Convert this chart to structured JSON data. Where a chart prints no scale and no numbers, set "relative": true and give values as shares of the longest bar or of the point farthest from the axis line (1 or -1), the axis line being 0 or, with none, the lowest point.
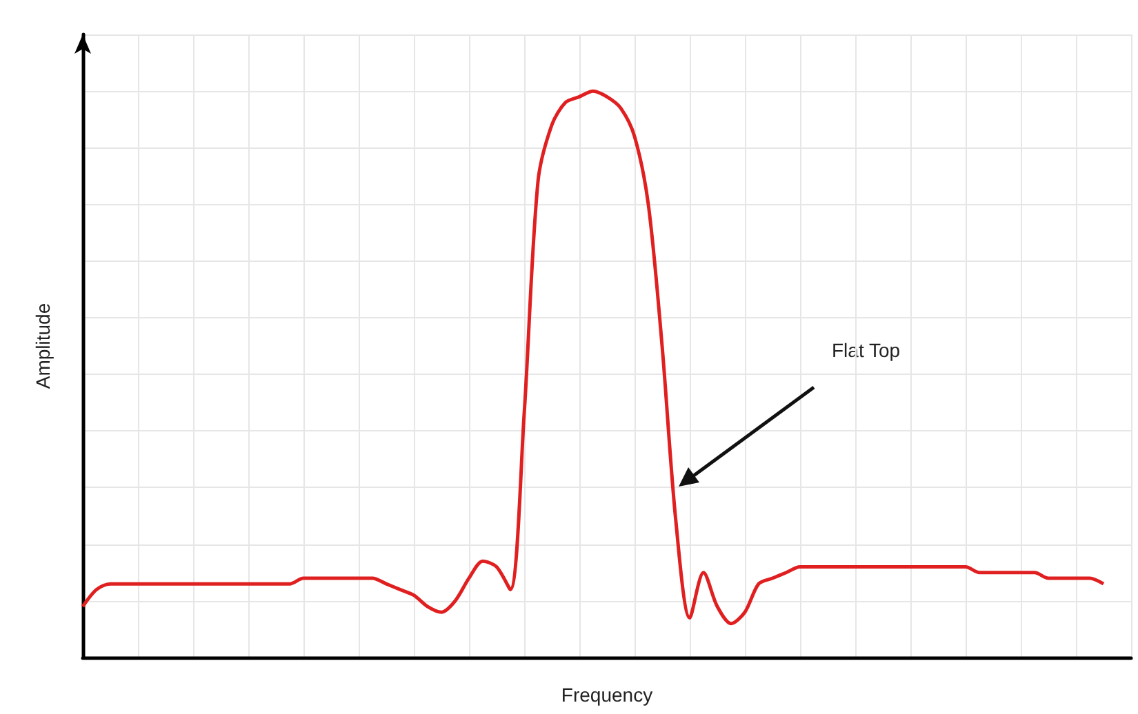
{
  "chart_data": {
    "type": "line",
    "relative": true,
    "xlabel": "Frequency",
    "ylabel": "Amplitude",
    "grid": true,
    "annotations": [
      "Flat Top"
    ],
    "categories": [
      null,
      null,
      null,
      null,
      null,
      null,
      null,
      null,
      null,
      null,
      null,
      null,
      null,
      null,
      null,
      null,
      null,
      null,
      null,
      null,
      null,
      null,
      null,
      null,
      null,
      null,
      null,
      null,
      null,
      null,
      null,
      null,
      null,
      null,
      null,
      null,
      null,
      null,
      null,
      null,
      null,
      null,
      null,
      null,
      null,
      null,
      null,
      null,
      null,
      null,
      null,
      null,
      null,
      null,
      null,
      null,
      null,
      null,
      null,
      null,
      null,
      null,
      null,
      null,
      null,
      null,
      null,
      null,
      null,
      null,
      null,
      null,
      null,
      null,
      null
    ],
    "series": [
      {
        "color": "#e02020",
        "values": [
          0.09,
          0.12,
          0.13,
          0.13,
          0.13,
          0.13,
          0.13,
          0.13,
          0.13,
          0.13,
          0.13,
          0.13,
          0.13,
          0.13,
          0.13,
          0.13,
          0.14,
          0.14,
          0.14,
          0.14,
          0.14,
          0.14,
          0.13,
          0.12,
          0.11,
          0.09,
          0.08,
          0.1,
          0.14,
          0.17,
          0.16,
          0.12,
          0.43,
          0.84,
          0.94,
          0.98,
          0.99,
          1,
          0.99,
          0.97,
          0.92,
          0.8,
          0.55,
          0.24,
          0.07,
          0.15,
          0.09,
          0.06,
          0.08,
          0.13,
          0.14,
          0.15,
          0.16,
          0.16,
          0.16,
          0.16,
          0.16,
          0.16,
          0.16,
          0.16,
          0.16,
          0.16,
          0.16,
          0.16,
          0.16,
          0.15,
          0.15,
          0.15,
          0.15,
          0.15,
          0.14,
          0.14,
          0.14,
          0.14,
          0.13
        ]
      }
    ]
  }
}
